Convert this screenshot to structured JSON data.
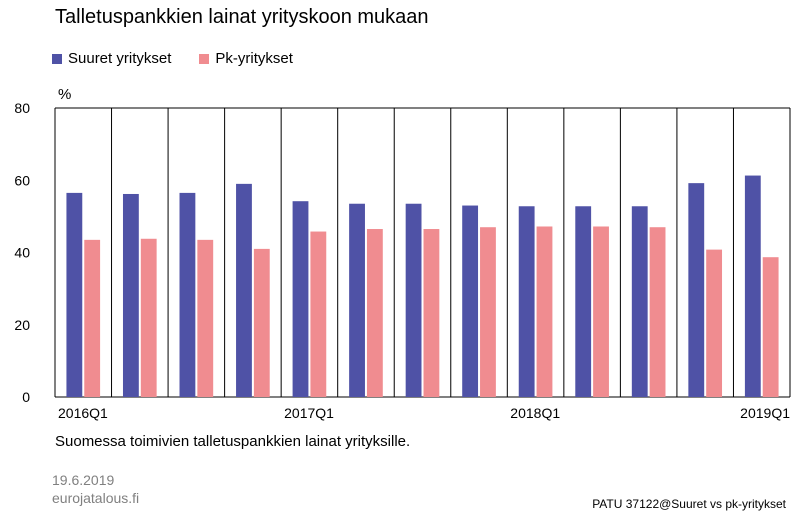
{
  "title": "Talletuspankkien lainat yrityskoon mukaan",
  "unit_label": "%",
  "subtitle": "Suomessa toimivien talletuspankkien lainat yrityksille.",
  "date": "19.6.2019",
  "source": "eurojatalous.fi",
  "code": "PATU 37122@Suuret  vs pk-yritykset",
  "legend": [
    {
      "label": "Suuret yritykset",
      "color": "#4f52a6"
    },
    {
      "label": "Pk-yritykset",
      "color": "#f08c90"
    }
  ],
  "chart_data": {
    "type": "bar",
    "categories": [
      "2016Q1",
      "2016Q2",
      "2016Q3",
      "2016Q4",
      "2017Q1",
      "2017Q2",
      "2017Q3",
      "2017Q4",
      "2018Q1",
      "2018Q2",
      "2018Q3",
      "2018Q4",
      "2019Q1"
    ],
    "x_tick_labels": [
      {
        "index": 0,
        "label": "2016Q1"
      },
      {
        "index": 4,
        "label": "2017Q1"
      },
      {
        "index": 8,
        "label": "2018Q1"
      },
      {
        "index": 12,
        "label": "2019Q1"
      }
    ],
    "series": [
      {
        "name": "Suuret yritykset",
        "color": "#4f52a6",
        "values": [
          56.5,
          56.2,
          56.5,
          59.0,
          54.2,
          53.5,
          53.5,
          53.0,
          52.8,
          52.8,
          52.8,
          59.2,
          61.3
        ]
      },
      {
        "name": "Pk-yritykset",
        "color": "#f08c90",
        "values": [
          43.5,
          43.8,
          43.5,
          41.0,
          45.8,
          46.5,
          46.5,
          47.0,
          47.2,
          47.2,
          47.0,
          40.8,
          38.7
        ]
      }
    ],
    "ylim": [
      0,
      80
    ],
    "yticks": [
      0,
      20,
      40,
      60,
      80
    ],
    "grid": "vertical"
  }
}
